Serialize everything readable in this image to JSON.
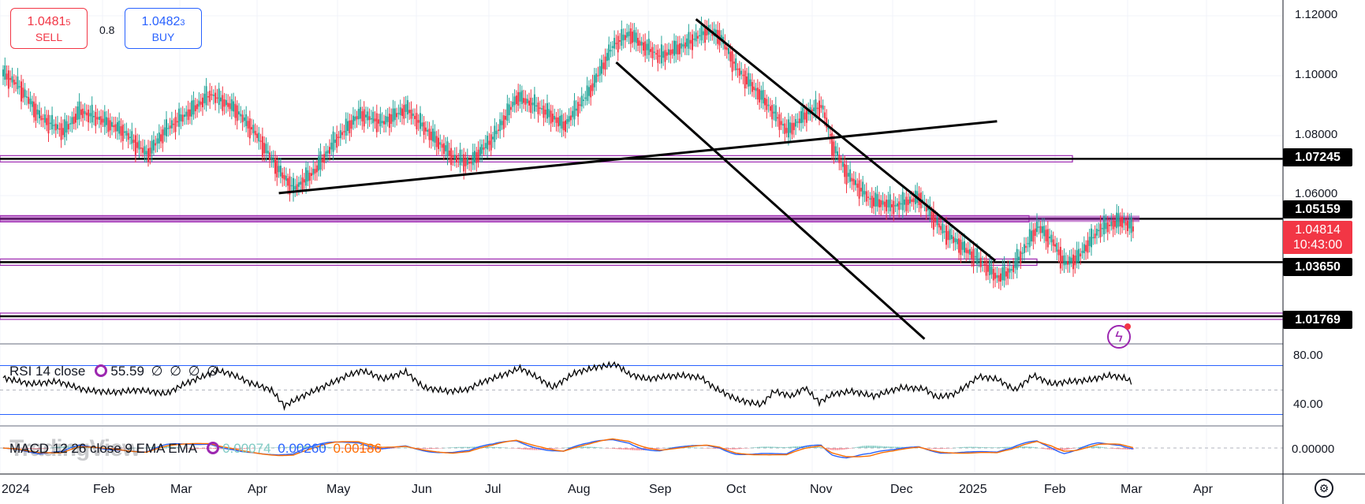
{
  "trade_panel": {
    "sell_price_main": "1.0481",
    "sell_price_small": "5",
    "sell_label": "SELL",
    "buy_price_main": "1.0482",
    "buy_price_small": "3",
    "buy_label": "BUY",
    "spread": "0.8"
  },
  "rsi": {
    "label": "RSI 14 close",
    "value": "55.59",
    "placeholders": [
      "∅",
      "∅",
      "∅",
      "∅"
    ],
    "axis_labels": [
      "80.00",
      "40.00"
    ]
  },
  "macd": {
    "label": "MACD 12 26 close 9 EMA EMA",
    "value1": "0.00074",
    "value2": "0.00260",
    "value3": "0.00186",
    "axis_label": "0.00000"
  },
  "price_axis": [
    "1.12000",
    "1.10000",
    "1.08000",
    "1.06000"
  ],
  "price_tags": {
    "level1": "1.07245",
    "level2": "1.05159",
    "current_price": "1.04814",
    "countdown": "10:43:00",
    "level3": "1.03650",
    "level4": "1.01769"
  },
  "time_axis": [
    "2024",
    "Feb",
    "Mar",
    "Apr",
    "May",
    "Jun",
    "Jul",
    "Aug",
    "Sep",
    "Oct",
    "Nov",
    "Dec",
    "2025",
    "Feb",
    "Mar",
    "Apr"
  ],
  "watermark": "TradingView",
  "colors": {
    "up": "#26a69a",
    "down": "#f23645",
    "level": "#9c27b0",
    "macd_line": "#2962ff",
    "signal_line": "#ff6d00"
  },
  "chart_data": {
    "type": "line",
    "title": "",
    "price_anchors": [
      [
        0,
        1.102
      ],
      [
        8,
        1.098
      ],
      [
        20,
        1.087
      ],
      [
        33,
        1.082
      ],
      [
        42,
        1.089
      ],
      [
        54,
        1.086
      ],
      [
        66,
        1.082
      ],
      [
        79,
        1.074
      ],
      [
        90,
        1.083
      ],
      [
        103,
        1.089
      ],
      [
        114,
        1.095
      ],
      [
        127,
        1.09
      ],
      [
        138,
        1.082
      ],
      [
        152,
        1.068
      ],
      [
        160,
        1.062
      ],
      [
        171,
        1.068
      ],
      [
        183,
        1.079
      ],
      [
        196,
        1.088
      ],
      [
        209,
        1.085
      ],
      [
        222,
        1.09
      ],
      [
        235,
        1.081
      ],
      [
        248,
        1.073
      ],
      [
        257,
        1.071
      ],
      [
        270,
        1.08
      ],
      [
        283,
        1.094
      ],
      [
        296,
        1.09
      ],
      [
        309,
        1.084
      ],
      [
        323,
        1.096
      ],
      [
        336,
        1.112
      ],
      [
        345,
        1.116
      ],
      [
        352,
        1.112
      ],
      [
        362,
        1.108
      ],
      [
        375,
        1.112
      ],
      [
        388,
        1.117
      ],
      [
        395,
        1.115
      ],
      [
        404,
        1.104
      ],
      [
        419,
        1.093
      ],
      [
        432,
        1.082
      ],
      [
        442,
        1.088
      ],
      [
        451,
        1.091
      ],
      [
        457,
        1.077
      ],
      [
        465,
        1.067
      ],
      [
        478,
        1.058
      ],
      [
        491,
        1.056
      ],
      [
        505,
        1.059
      ],
      [
        517,
        1.048
      ],
      [
        528,
        1.042
      ],
      [
        540,
        1.036
      ],
      [
        548,
        1.031
      ],
      [
        556,
        1.034
      ],
      [
        570,
        1.049
      ],
      [
        578,
        1.044
      ],
      [
        585,
        1.036
      ],
      [
        592,
        1.038
      ],
      [
        604,
        1.048
      ],
      [
        616,
        1.051
      ],
      [
        623,
        1.048
      ]
    ],
    "levels": [
      1.07245,
      1.05159,
      1.0365,
      1.01769
    ],
    "trendlines": [
      [
        [
          152,
          1.0605
        ],
        [
          548,
          1.0855
        ]
      ],
      [
        [
          338,
          1.106
        ],
        [
          508,
          1.0098
        ]
      ],
      [
        [
          382,
          1.121
        ],
        [
          547,
          1.037
        ]
      ]
    ],
    "rsi_anchors": [
      [
        0,
        60
      ],
      [
        15,
        55
      ],
      [
        30,
        57
      ],
      [
        45,
        50
      ],
      [
        60,
        48
      ],
      [
        75,
        50
      ],
      [
        90,
        47
      ],
      [
        100,
        55
      ],
      [
        110,
        61
      ],
      [
        118,
        66
      ],
      [
        126,
        63
      ],
      [
        136,
        56
      ],
      [
        148,
        50
      ],
      [
        155,
        37
      ],
      [
        165,
        45
      ],
      [
        177,
        53
      ],
      [
        190,
        62
      ],
      [
        198,
        66
      ],
      [
        210,
        59
      ],
      [
        222,
        65
      ],
      [
        232,
        52
      ],
      [
        245,
        49
      ],
      [
        255,
        50
      ],
      [
        265,
        57
      ],
      [
        275,
        62
      ],
      [
        285,
        68
      ],
      [
        295,
        60
      ],
      [
        303,
        52
      ],
      [
        315,
        64
      ],
      [
        328,
        69
      ],
      [
        338,
        71
      ],
      [
        345,
        63
      ],
      [
        355,
        59
      ],
      [
        365,
        61
      ],
      [
        375,
        62
      ],
      [
        385,
        60
      ],
      [
        392,
        52
      ],
      [
        405,
        42
      ],
      [
        418,
        38
      ],
      [
        425,
        49
      ],
      [
        435,
        45
      ],
      [
        442,
        52
      ],
      [
        450,
        40
      ],
      [
        458,
        47
      ],
      [
        468,
        49
      ],
      [
        480,
        45
      ],
      [
        495,
        52
      ],
      [
        508,
        51
      ],
      [
        515,
        44
      ],
      [
        525,
        47
      ],
      [
        538,
        61
      ],
      [
        548,
        59
      ],
      [
        558,
        50
      ],
      [
        568,
        62
      ],
      [
        578,
        55
      ],
      [
        588,
        57
      ],
      [
        598,
        58
      ],
      [
        610,
        62
      ],
      [
        618,
        60
      ],
      [
        623,
        56
      ]
    ],
    "ylim": [
      1.0,
      1.125
    ],
    "rsi_ylim": [
      25,
      85
    ],
    "grid": true
  }
}
